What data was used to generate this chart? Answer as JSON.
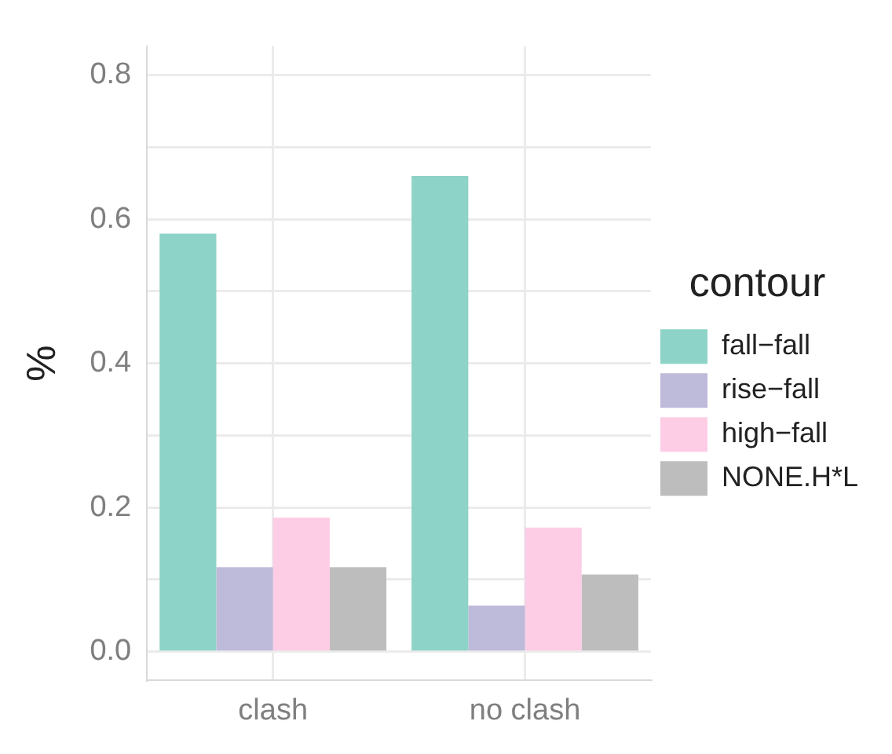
{
  "chart_data": {
    "type": "bar",
    "ylabel": "%",
    "legend_title": "contour",
    "categories": [
      "clash",
      "no clash"
    ],
    "series": [
      {
        "name": "fall−fall",
        "color": "#8dd3c7",
        "values": [
          0.58,
          0.66
        ]
      },
      {
        "name": "rise−fall",
        "color": "#bebada",
        "values": [
          0.117,
          0.064
        ]
      },
      {
        "name": "high−fall",
        "color": "#fccde5",
        "values": [
          0.186,
          0.172
        ]
      },
      {
        "name": "NONE.H*L",
        "color": "#bdbdbd",
        "values": [
          0.117,
          0.107
        ]
      }
    ],
    "ylim": [
      -0.04,
      0.84
    ],
    "yticks": [
      {
        "value": 0,
        "label": "0.0"
      },
      {
        "value": 0.1,
        "label": null
      },
      0.2,
      {
        "value": 0.3,
        "label": null
      },
      0.4,
      {
        "value": 0.5,
        "label": null
      },
      0.6,
      {
        "value": 0.7,
        "label": null
      },
      0.8
    ],
    "grid": true,
    "legend": "right"
  }
}
